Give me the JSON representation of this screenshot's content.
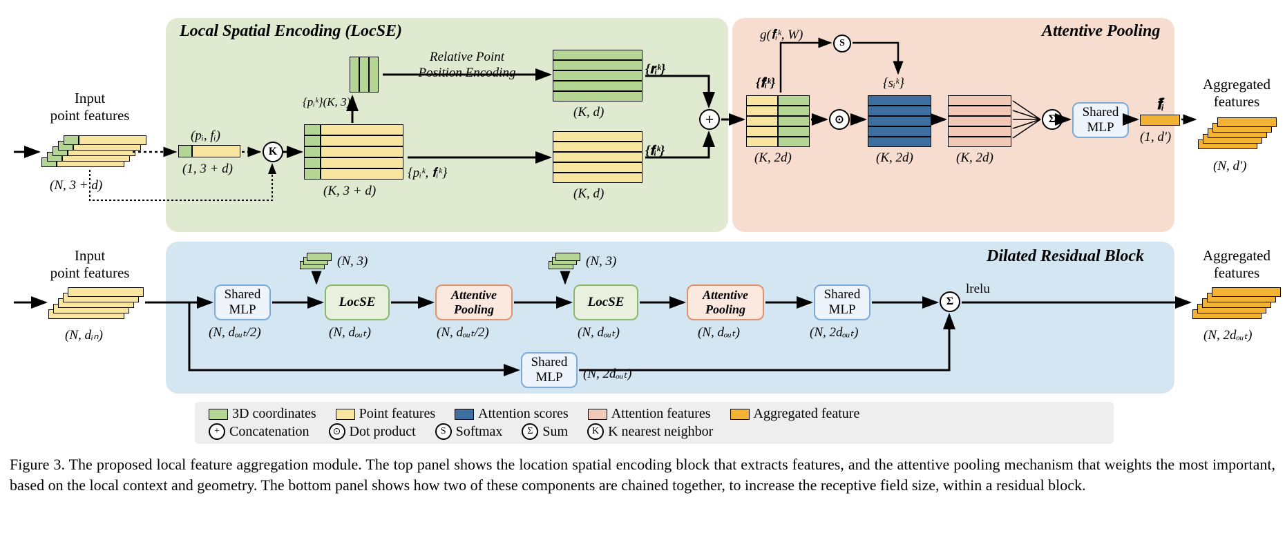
{
  "colors": {
    "locse_panel": "#dfead1",
    "attentive_panel": "#f6ddcf",
    "dilated_panel": "#d4e6f2",
    "legend_bg": "#eeeeee",
    "coord_green": "#b5d595",
    "feat_yellow": "#f8e6a0",
    "attn_blue": "#3d6fa0",
    "attn_feat": "#f2c9b6",
    "agg_orange": "#f2b233",
    "mlp_border": "#7ba9d8",
    "mlp_bg": "#edf4fb",
    "locse_border": "#88b86a",
    "locse_bg": "#e9f1de",
    "ap_border": "#e0916c",
    "ap_bg": "#fbe9e0"
  },
  "titles": {
    "locse": "Local Spatial Encoding (LocSE)",
    "attentive": "Attentive Pooling",
    "dilated": "Dilated Residual Block"
  },
  "labels": {
    "input_pf": "Input\npoint features",
    "agg_feat": "Aggregated\nfeatures",
    "rel_enc": "Relative Point\nPosition Encoding",
    "shared_mlp": "Shared\nMLP",
    "locse": "LocSE",
    "ap": "Attentive\nPooling",
    "lrelu": "lrelu",
    "g_fn": "g(𝐟̂ᵢᵏ, W)"
  },
  "dims": {
    "n3d": "(N, 3 + d)",
    "one3d": "(1, 3 + d)",
    "pifi": "(pᵢ, fᵢ)",
    "pik": "{pᵢᵏ}(K, 3)",
    "k3d": "(K, 3 + d)",
    "pikfik": "{pᵢᵏ, 𝐟ᵢᵏ}",
    "kd": "(K, d)",
    "rik": "{𝐫ᵢᵏ}",
    "fik": "{𝐟ᵢᵏ}",
    "fhat": "{𝐟̂ᵢᵏ}",
    "sik": "{sᵢᵏ}",
    "k2d": "(K, 2d)",
    "ftilde": "𝐟̃ᵢ",
    "one_dp": "(1, d')",
    "n_dp": "(N, d')",
    "n_din": "(N, dᵢₙ)",
    "n_dout2": "(N, dₒᵤₜ/2)",
    "n_dout": "(N, dₒᵤₜ)",
    "n_2dout": "(N, 2dₒᵤₜ)",
    "n3": "(N, 3)"
  },
  "legend": {
    "coord": "3D coordinates",
    "pf": "Point features",
    "as": "Attention scores",
    "af": "Attention features",
    "agg": "Aggregated feature",
    "concat": "Concatenation",
    "dot": "Dot product",
    "softmax": "Softmax",
    "sum": "Sum",
    "knn": "K nearest neighbor"
  },
  "caption": "Figure 3. The proposed local feature aggregation module.  The top panel shows the location spatial encoding block that extracts features, and the attentive pooling mechanism that weights the most important, based on the local context and geometry.  The bottom panel shows how two of these components are chained together, to increase the receptive field size, within a residual block."
}
